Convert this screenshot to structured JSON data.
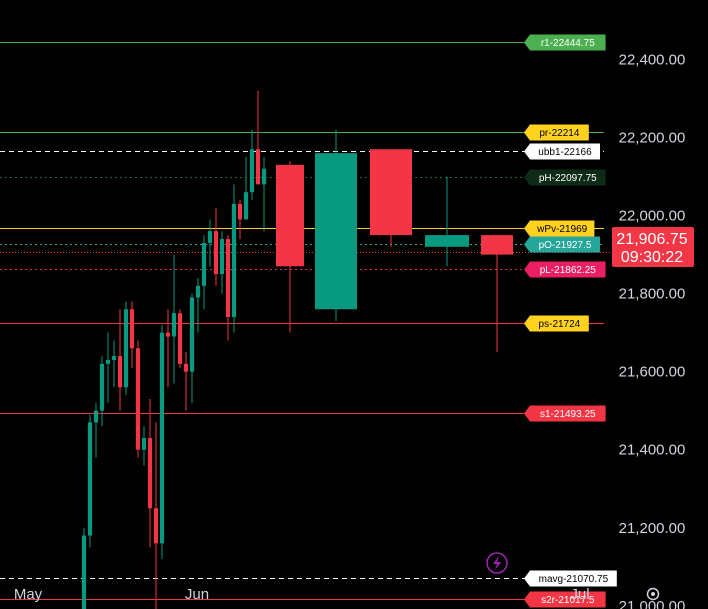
{
  "chart_data": {
    "type": "candlestick",
    "y_axis": {
      "range": [
        20960,
        22560
      ],
      "ticks": [
        "22,400.00",
        "22,200.00",
        "22,000.00",
        "21,800.00",
        "21,600.00",
        "21,400.00",
        "21,200.00",
        "21,000.00"
      ],
      "tick_values": [
        22400,
        22200,
        22000,
        21800,
        21600,
        21400,
        21200,
        21000
      ]
    },
    "x_axis": {
      "labels": [
        "May",
        "Jun",
        "Jul"
      ]
    },
    "current_price": {
      "value": "21,906.75",
      "countdown": "09:30:22",
      "color": "#f23645"
    },
    "levels": [
      {
        "label": "r1-22444.75",
        "value": 22444.75,
        "line_color": "#4caf50",
        "tag_bg": "#4caf50",
        "tag_fg": "#ffffff",
        "style": "solid"
      },
      {
        "label": "pr-22214",
        "value": 22214,
        "line_color": "#4caf50",
        "tag_bg": "#ffd21f",
        "tag_fg": "#000000",
        "style": "solid"
      },
      {
        "label": "ubb1-22166",
        "value": 22166,
        "line_color": "#ffffff",
        "tag_bg": "#ffffff",
        "tag_fg": "#000000",
        "style": "dashed"
      },
      {
        "label": "pH-22097.75",
        "value": 22097.75,
        "line_color": "#1f6b3a",
        "tag_bg": "#0d2b17",
        "tag_fg": "#ffffff",
        "style": "dotted"
      },
      {
        "label": "wPv-21969",
        "value": 21969,
        "line_color": "#ffd21f",
        "tag_bg": "#ffd21f",
        "tag_fg": "#000000",
        "style": "solid"
      },
      {
        "label": "pO-21927.5",
        "value": 21927.5,
        "line_color": "#26a69a",
        "tag_bg": "#26a69a",
        "tag_fg": "#ffffff",
        "style": "dotted"
      },
      {
        "label": "pL-21862.25",
        "value": 21862.25,
        "line_color": "#e91e63",
        "tag_bg": "#e91e63",
        "tag_fg": "#ffffff",
        "style": "dotted"
      },
      {
        "label": "ps-21724",
        "value": 21724,
        "line_color": "#f23645",
        "tag_bg": "#ffd21f",
        "tag_fg": "#000000",
        "style": "solid"
      },
      {
        "label": "s1-21493.25",
        "value": 21493.25,
        "line_color": "#f23645",
        "tag_bg": "#f23645",
        "tag_fg": "#ffffff",
        "style": "solid"
      },
      {
        "label": "mavg-21070.75",
        "value": 21070.75,
        "line_color": "#ffffff",
        "tag_bg": "#ffffff",
        "tag_fg": "#000000",
        "style": "dashed"
      },
      {
        "label": "s2r-21017.5",
        "value": 21017.5,
        "line_color": "#f23645",
        "tag_bg": "#f23645",
        "tag_fg": "#ffffff",
        "style": "solid"
      }
    ],
    "candles_daily": [
      {
        "o": 20960,
        "h": 21200,
        "l": 20950,
        "c": 21180
      },
      {
        "o": 21180,
        "h": 21490,
        "l": 21150,
        "c": 21470
      },
      {
        "o": 21470,
        "h": 21520,
        "l": 21380,
        "c": 21500
      },
      {
        "o": 21500,
        "h": 21640,
        "l": 21460,
        "c": 21620
      },
      {
        "o": 21620,
        "h": 21700,
        "l": 21520,
        "c": 21630
      },
      {
        "o": 21630,
        "h": 21680,
        "l": 21560,
        "c": 21640
      },
      {
        "o": 21640,
        "h": 21760,
        "l": 21500,
        "c": 21560
      },
      {
        "o": 21560,
        "h": 21780,
        "l": 21540,
        "c": 21760
      },
      {
        "o": 21760,
        "h": 21780,
        "l": 21610,
        "c": 21660
      },
      {
        "o": 21660,
        "h": 21680,
        "l": 21380,
        "c": 21400
      },
      {
        "o": 21400,
        "h": 21460,
        "l": 21360,
        "c": 21430
      },
      {
        "o": 21430,
        "h": 21530,
        "l": 21150,
        "c": 21250
      },
      {
        "o": 21250,
        "h": 21470,
        "l": 20970,
        "c": 21160
      },
      {
        "o": 21160,
        "h": 21720,
        "l": 21120,
        "c": 21700
      },
      {
        "o": 21700,
        "h": 21760,
        "l": 21560,
        "c": 21690
      },
      {
        "o": 21690,
        "h": 21900,
        "l": 21570,
        "c": 21750
      },
      {
        "o": 21750,
        "h": 21760,
        "l": 21610,
        "c": 21620
      },
      {
        "o": 21620,
        "h": 21650,
        "l": 21500,
        "c": 21600
      },
      {
        "o": 21600,
        "h": 21800,
        "l": 21520,
        "c": 21790
      },
      {
        "o": 21790,
        "h": 21840,
        "l": 21700,
        "c": 21820
      },
      {
        "o": 21820,
        "h": 21950,
        "l": 21760,
        "c": 21930
      },
      {
        "o": 21930,
        "h": 21990,
        "l": 21870,
        "c": 21960
      },
      {
        "o": 21960,
        "h": 22020,
        "l": 21820,
        "c": 21850
      },
      {
        "o": 21850,
        "h": 21960,
        "l": 21800,
        "c": 21940
      },
      {
        "o": 21940,
        "h": 21950,
        "l": 21680,
        "c": 21740
      },
      {
        "o": 21740,
        "h": 22080,
        "l": 21700,
        "c": 22030
      },
      {
        "o": 22030,
        "h": 22040,
        "l": 21940,
        "c": 21990
      },
      {
        "o": 21990,
        "h": 22150,
        "l": 21990,
        "c": 22060
      },
      {
        "o": 22060,
        "h": 22220,
        "l": 22040,
        "c": 22170
      },
      {
        "o": 22170,
        "h": 22320,
        "l": 22090,
        "c": 22080
      },
      {
        "o": 22080,
        "h": 22150,
        "l": 21960,
        "c": 22120
      }
    ],
    "candles_weekly": [
      {
        "o": 22130,
        "h": 22140,
        "l": 21700,
        "c": 21870
      },
      {
        "o": 21760,
        "h": 22220,
        "l": 21730,
        "c": 22160
      },
      {
        "o": 22170,
        "h": 22170,
        "l": 21920,
        "c": 21950
      },
      {
        "o": 21920,
        "h": 22100,
        "l": 21870,
        "c": 21950
      },
      {
        "o": 21950,
        "h": 21950,
        "l": 21650,
        "c": 21900
      }
    ],
    "colors": {
      "up": "#089981",
      "down": "#f23645",
      "background": "#000000",
      "text": "#d1d4dc"
    }
  },
  "icons": {
    "lightning": "lightning-icon",
    "settings": "settings-icon"
  }
}
